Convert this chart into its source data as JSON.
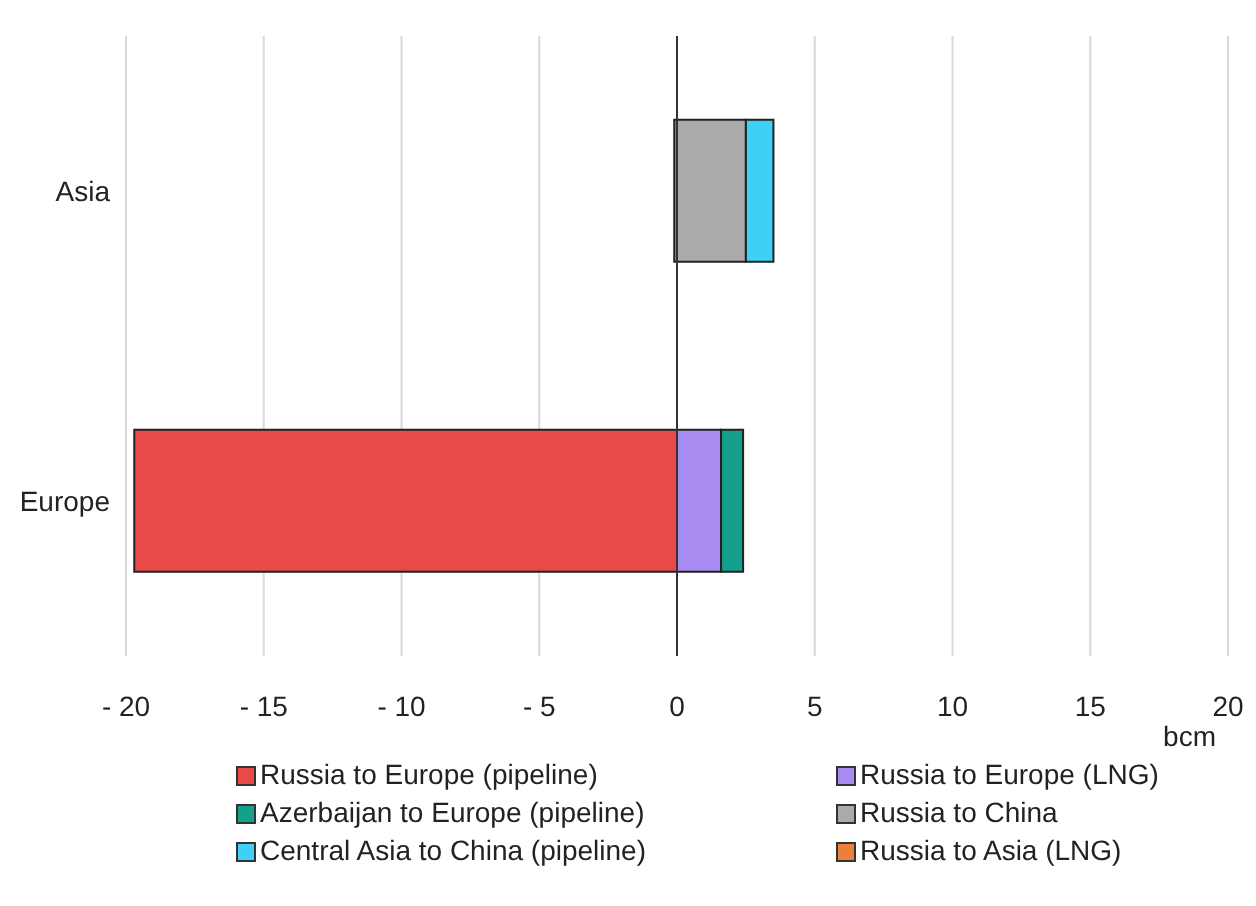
{
  "chart_data": {
    "type": "bar",
    "orientation": "horizontal",
    "stacked": true,
    "categories": [
      "Asia",
      "Europe"
    ],
    "series": [
      {
        "name": "Russia to Europe (pipeline)",
        "color": "#e84a4a",
        "values": [
          null,
          -19.7
        ]
      },
      {
        "name": "Russia to Europe (LNG)",
        "color": "#a78bf0",
        "values": [
          null,
          1.6
        ]
      },
      {
        "name": "Azerbaijan to Europe (pipeline)",
        "color": "#14a08c",
        "values": [
          null,
          0.8
        ]
      },
      {
        "name": "Russia to China",
        "color": "#aaaaaa",
        "values": [
          2.5,
          null
        ]
      },
      {
        "name": "Central Asia to China (pipeline)",
        "color": "#3fd0f5",
        "values": [
          1.0,
          null
        ]
      },
      {
        "name": "Russia to Asia (LNG)",
        "color": "#e8823a",
        "values": [
          -0.1,
          null
        ]
      }
    ],
    "xlabel": "bcm",
    "xlim": [
      -20,
      20
    ],
    "xticks": [
      {
        "value": -20,
        "label": "- 20"
      },
      {
        "value": -15,
        "label": "- 15"
      },
      {
        "value": -10,
        "label": "- 10"
      },
      {
        "value": -5,
        "label": "- 5"
      },
      0,
      5,
      10,
      15,
      20
    ],
    "grid": "x",
    "legend": "bottom",
    "ref_lines": [
      {
        "axis": "x",
        "value": 0,
        "color": "#333333"
      }
    ]
  }
}
